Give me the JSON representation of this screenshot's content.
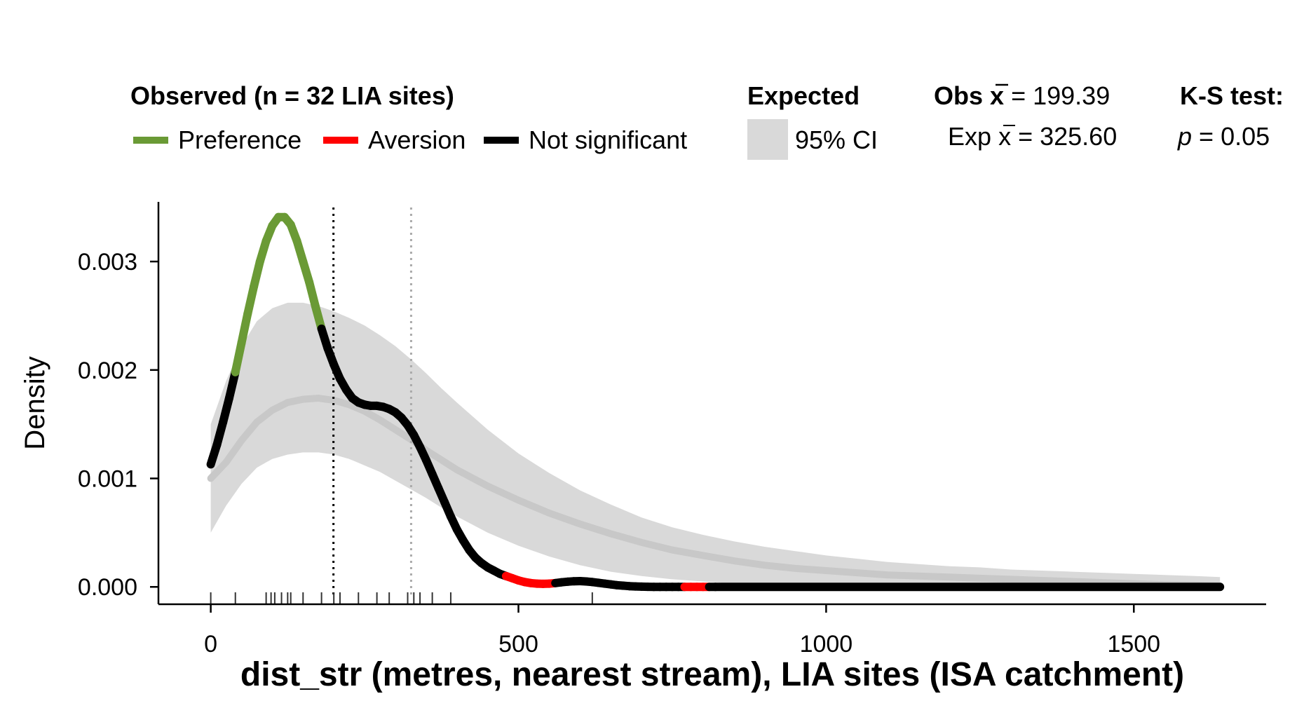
{
  "legend": {
    "observed_title": "Observed (n = 32 LIA sites)",
    "preference_label": "Preference",
    "aversion_label": "Aversion",
    "not_significant_label": "Not significant",
    "expected_title": "Expected",
    "ci_label": "95% CI",
    "obs_mean_prefix": "Obs",
    "obs_mean_value": "= 199.39",
    "exp_mean_prefix": "Exp",
    "exp_mean_value": "= 325.60",
    "mean_symbol": "x",
    "ks_title": "K-S test:",
    "p_symbol": "p",
    "p_value": "= 0.05"
  },
  "colors": {
    "preference": "#6a9a35",
    "aversion": "#ff0000",
    "not_significant": "#000000",
    "ci_band": "#d9d9d9",
    "expected_line": "#c8c8c8"
  },
  "chart_data": {
    "type": "line",
    "xlabel": "dist_str (metres, nearest stream), LIA sites (ISA catchment)",
    "ylabel": "Density",
    "xlim": [
      -85,
      1715
    ],
    "ylim": [
      -0.00016,
      0.00355
    ],
    "x_ticks": [
      0,
      500,
      1000,
      1500
    ],
    "x_tick_labels": [
      "0",
      "500",
      "1000",
      "1500"
    ],
    "y_ticks": [
      0,
      0.001,
      0.002,
      0.003
    ],
    "y_tick_labels": [
      "0.000",
      "0.001",
      "0.002",
      "0.003"
    ],
    "obs_mean": 199.39,
    "exp_mean": 325.6,
    "observed": {
      "x": [
        0,
        10,
        20,
        30,
        40,
        50,
        60,
        70,
        80,
        90,
        100,
        110,
        120,
        130,
        140,
        150,
        160,
        170,
        180,
        190,
        200,
        210,
        220,
        230,
        240,
        250,
        260,
        270,
        280,
        290,
        300,
        310,
        320,
        330,
        340,
        350,
        360,
        370,
        380,
        390,
        400,
        410,
        420,
        430,
        440,
        450,
        460,
        470,
        480,
        490,
        500,
        510,
        520,
        530,
        540,
        550,
        560,
        570,
        580,
        590,
        600,
        610,
        620,
        630,
        640,
        650,
        660,
        670,
        680,
        690,
        700,
        710,
        720,
        730,
        740,
        750,
        760,
        770,
        780,
        790,
        800,
        810,
        820,
        1640
      ],
      "y": [
        0.00113,
        0.00131,
        0.00152,
        0.00174,
        0.00198,
        0.00225,
        0.00252,
        0.00277,
        0.003,
        0.00319,
        0.00333,
        0.00341,
        0.00341,
        0.00334,
        0.00319,
        0.003,
        0.00281,
        0.00259,
        0.00238,
        0.0022,
        0.00205,
        0.00192,
        0.00182,
        0.00174,
        0.0017,
        0.00168,
        0.00167,
        0.00167,
        0.00166,
        0.00164,
        0.00161,
        0.00156,
        0.00149,
        0.0014,
        0.00129,
        0.00117,
        0.00104,
        0.00091,
        0.00078,
        0.00065,
        0.00053,
        0.00043,
        0.00034,
        0.00027,
        0.00022,
        0.00018,
        0.00015,
        0.00012,
        0.0001,
        8e-05,
        6e-05,
        4.5e-05,
        3.5e-05,
        3e-05,
        2.8e-05,
        3e-05,
        3.5e-05,
        4.2e-05,
        4.8e-05,
        5.2e-05,
        5.3e-05,
        5e-05,
        4.5e-05,
        3.8e-05,
        3e-05,
        2.3e-05,
        1.6e-05,
        1.1e-05,
        7e-06,
        4e-06,
        2e-06,
        1e-06,
        5e-07,
        3e-07,
        2e-07,
        1e-07,
        5e-08,
        3e-08,
        2e-08,
        1e-08,
        0.0,
        0.0,
        0.0,
        0.0
      ],
      "significance": [
        "not_significant",
        "not_significant",
        "not_significant",
        "not_significant",
        "preference",
        "preference",
        "preference",
        "preference",
        "preference",
        "preference",
        "preference",
        "preference",
        "preference",
        "preference",
        "preference",
        "preference",
        "preference",
        "preference",
        "not_significant",
        "not_significant",
        "not_significant",
        "not_significant",
        "not_significant",
        "not_significant",
        "not_significant",
        "not_significant",
        "not_significant",
        "not_significant",
        "not_significant",
        "not_significant",
        "not_significant",
        "not_significant",
        "not_significant",
        "not_significant",
        "not_significant",
        "not_significant",
        "not_significant",
        "not_significant",
        "not_significant",
        "not_significant",
        "not_significant",
        "not_significant",
        "not_significant",
        "not_significant",
        "not_significant",
        "not_significant",
        "not_significant",
        "not_significant",
        "aversion",
        "aversion",
        "aversion",
        "aversion",
        "aversion",
        "aversion",
        "aversion",
        "aversion",
        "not_significant",
        "not_significant",
        "not_significant",
        "not_significant",
        "not_significant",
        "not_significant",
        "not_significant",
        "not_significant",
        "not_significant",
        "not_significant",
        "not_significant",
        "not_significant",
        "not_significant",
        "not_significant",
        "not_significant",
        "not_significant",
        "not_significant",
        "not_significant",
        "not_significant",
        "not_significant",
        "not_significant",
        "aversion",
        "aversion",
        "aversion",
        "aversion",
        "not_significant",
        "not_significant",
        "not_significant"
      ]
    },
    "expected": {
      "x": [
        0,
        25,
        50,
        75,
        100,
        125,
        150,
        175,
        200,
        225,
        250,
        275,
        300,
        325,
        350,
        375,
        400,
        450,
        500,
        550,
        600,
        650,
        700,
        750,
        800,
        850,
        900,
        950,
        1000,
        1050,
        1100,
        1150,
        1200,
        1250,
        1300,
        1350,
        1400,
        1450,
        1500,
        1550,
        1600,
        1640
      ],
      "mean": [
        0.001,
        0.00115,
        0.00135,
        0.00152,
        0.00163,
        0.0017,
        0.00173,
        0.00174,
        0.00172,
        0.00168,
        0.00162,
        0.00154,
        0.00145,
        0.00136,
        0.00126,
        0.00117,
        0.00108,
        0.00093,
        0.0008,
        0.00068,
        0.00058,
        0.00049,
        0.00041,
        0.00034,
        0.00029,
        0.00024,
        0.0002,
        0.00017,
        0.00015,
        0.00013,
        0.00011,
        0.0001,
        9e-05,
        8e-05,
        7e-05,
        6e-05,
        5e-05,
        4e-05,
        3e-05,
        2e-05,
        1.5e-05,
        1e-05
      ],
      "lower": [
        0.0005,
        0.00075,
        0.00095,
        0.0011,
        0.00118,
        0.00122,
        0.00124,
        0.00124,
        0.00122,
        0.00118,
        0.00112,
        0.00106,
        0.00098,
        0.0009,
        0.00082,
        0.00073,
        0.00065,
        0.0005,
        0.00038,
        0.00028,
        0.0002,
        0.00014,
        0.0001,
        7e-05,
        5e-05,
        3e-05,
        2e-05,
        1e-05,
        1e-05,
        0.0,
        0.0,
        0.0,
        0.0,
        0.0,
        0.0,
        0.0,
        0.0,
        0.0,
        0.0,
        0.0,
        0.0,
        0.0
      ],
      "upper": [
        0.0015,
        0.0019,
        0.00222,
        0.00245,
        0.00257,
        0.00262,
        0.00262,
        0.00259,
        0.00254,
        0.00248,
        0.00241,
        0.00232,
        0.00222,
        0.0021,
        0.00197,
        0.00183,
        0.0017,
        0.00145,
        0.00123,
        0.00105,
        0.00089,
        0.00076,
        0.00064,
        0.00055,
        0.00048,
        0.00042,
        0.00037,
        0.00033,
        0.00029,
        0.00026,
        0.00023,
        0.00021,
        0.00019,
        0.00018,
        0.00016,
        0.00015,
        0.00014,
        0.00013,
        0.00012,
        0.00011,
        0.0001,
        9e-05
      ]
    },
    "rug": [
      0,
      40,
      90,
      98,
      104,
      115,
      125,
      130,
      150,
      180,
      200,
      210,
      240,
      270,
      290,
      320,
      330,
      340,
      360,
      390,
      620
    ]
  }
}
